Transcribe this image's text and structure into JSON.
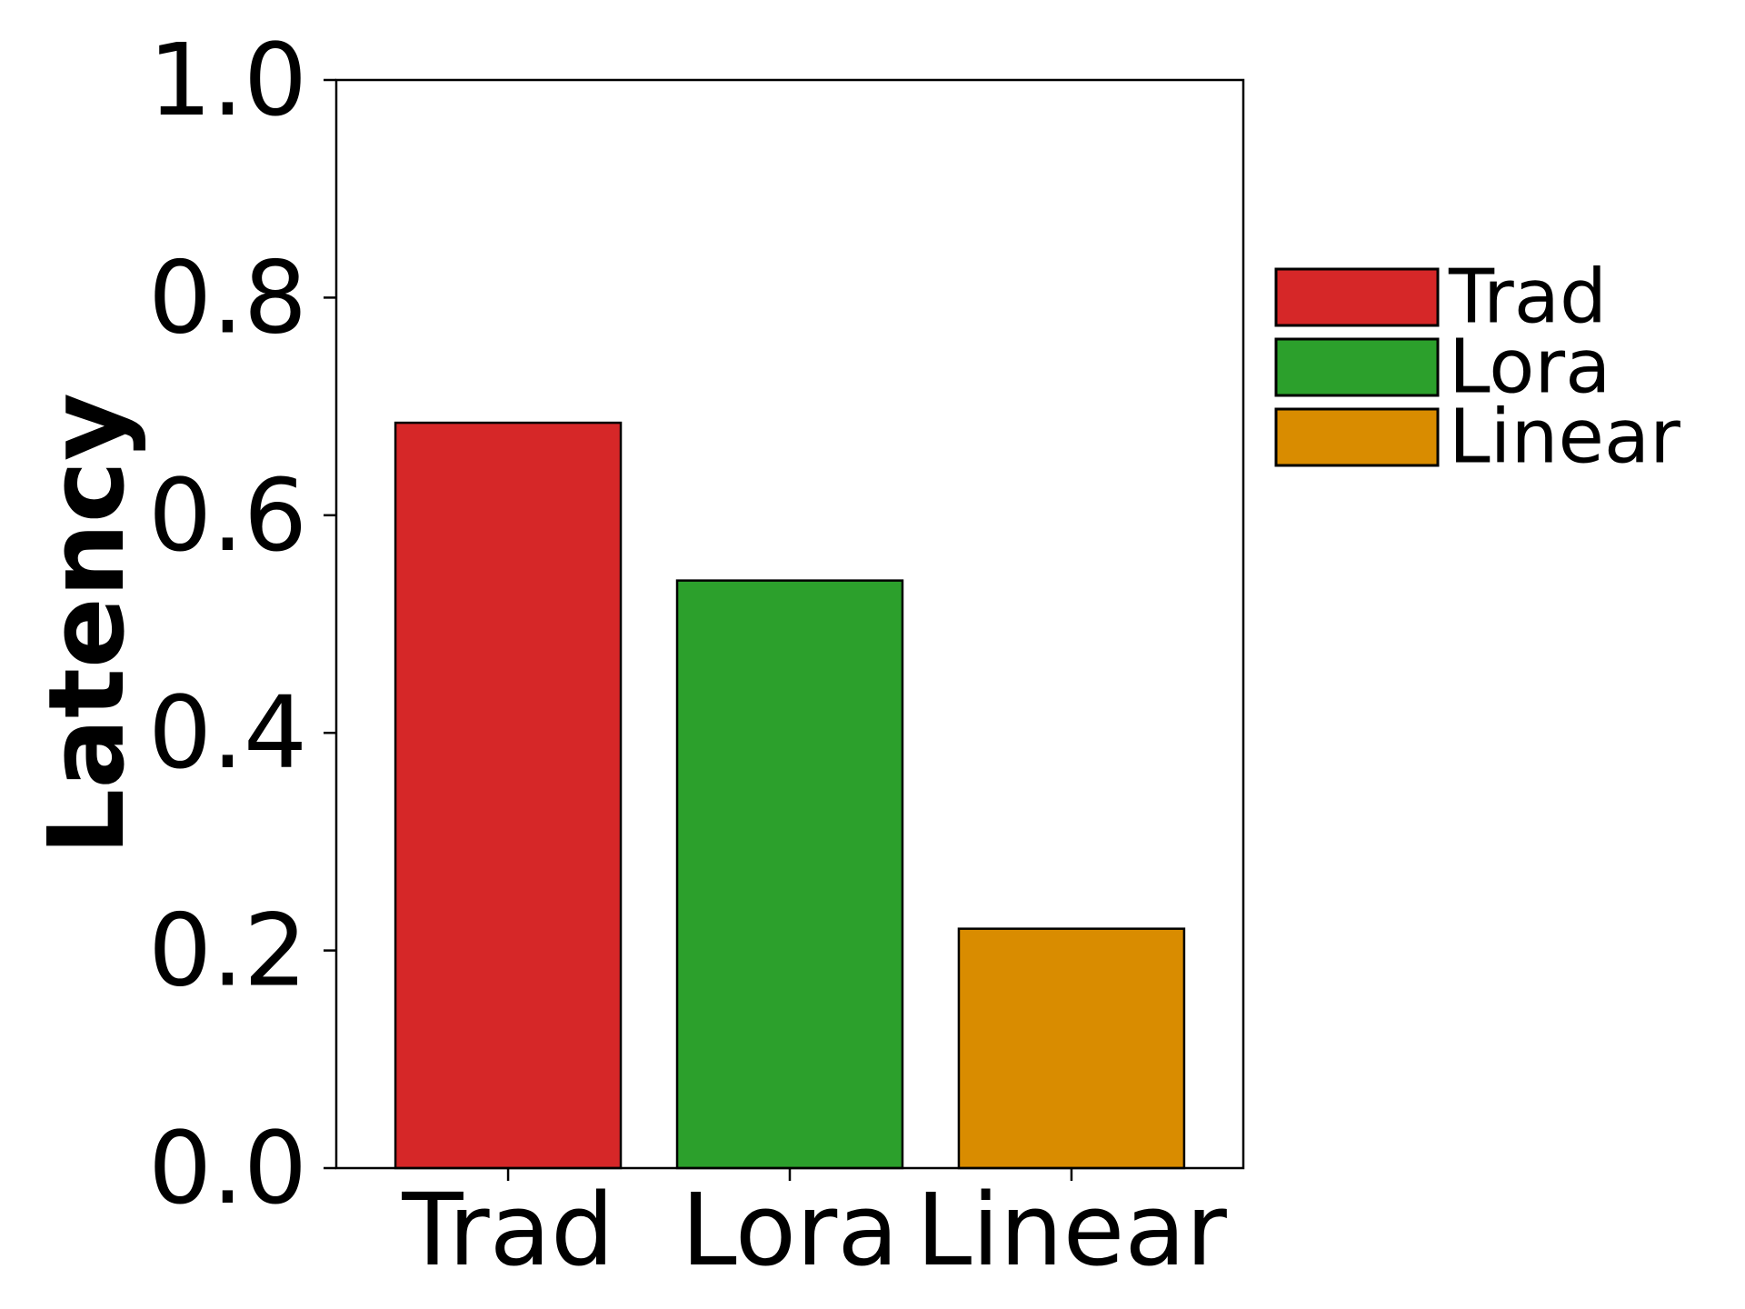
{
  "chart_data": {
    "type": "bar",
    "categories": [
      "Trad",
      "Lora",
      "Linear"
    ],
    "values": [
      0.685,
      0.54,
      0.22
    ],
    "colors": [
      "#d62728",
      "#2ca02c",
      "#d98c00"
    ],
    "edge_color": "#000000",
    "xlabel": "",
    "ylabel": "Latency",
    "ylim": [
      0,
      1.0
    ],
    "yticks": [
      0.0,
      0.2,
      0.4,
      0.6,
      0.8,
      1.0
    ],
    "ytick_labels": [
      "0.0",
      "0.2",
      "0.4",
      "0.6",
      "0.8",
      "1.0"
    ],
    "grid": false,
    "legend": {
      "placement": "outside-right",
      "entries": [
        "Trad",
        "Lora",
        "Linear"
      ]
    }
  }
}
